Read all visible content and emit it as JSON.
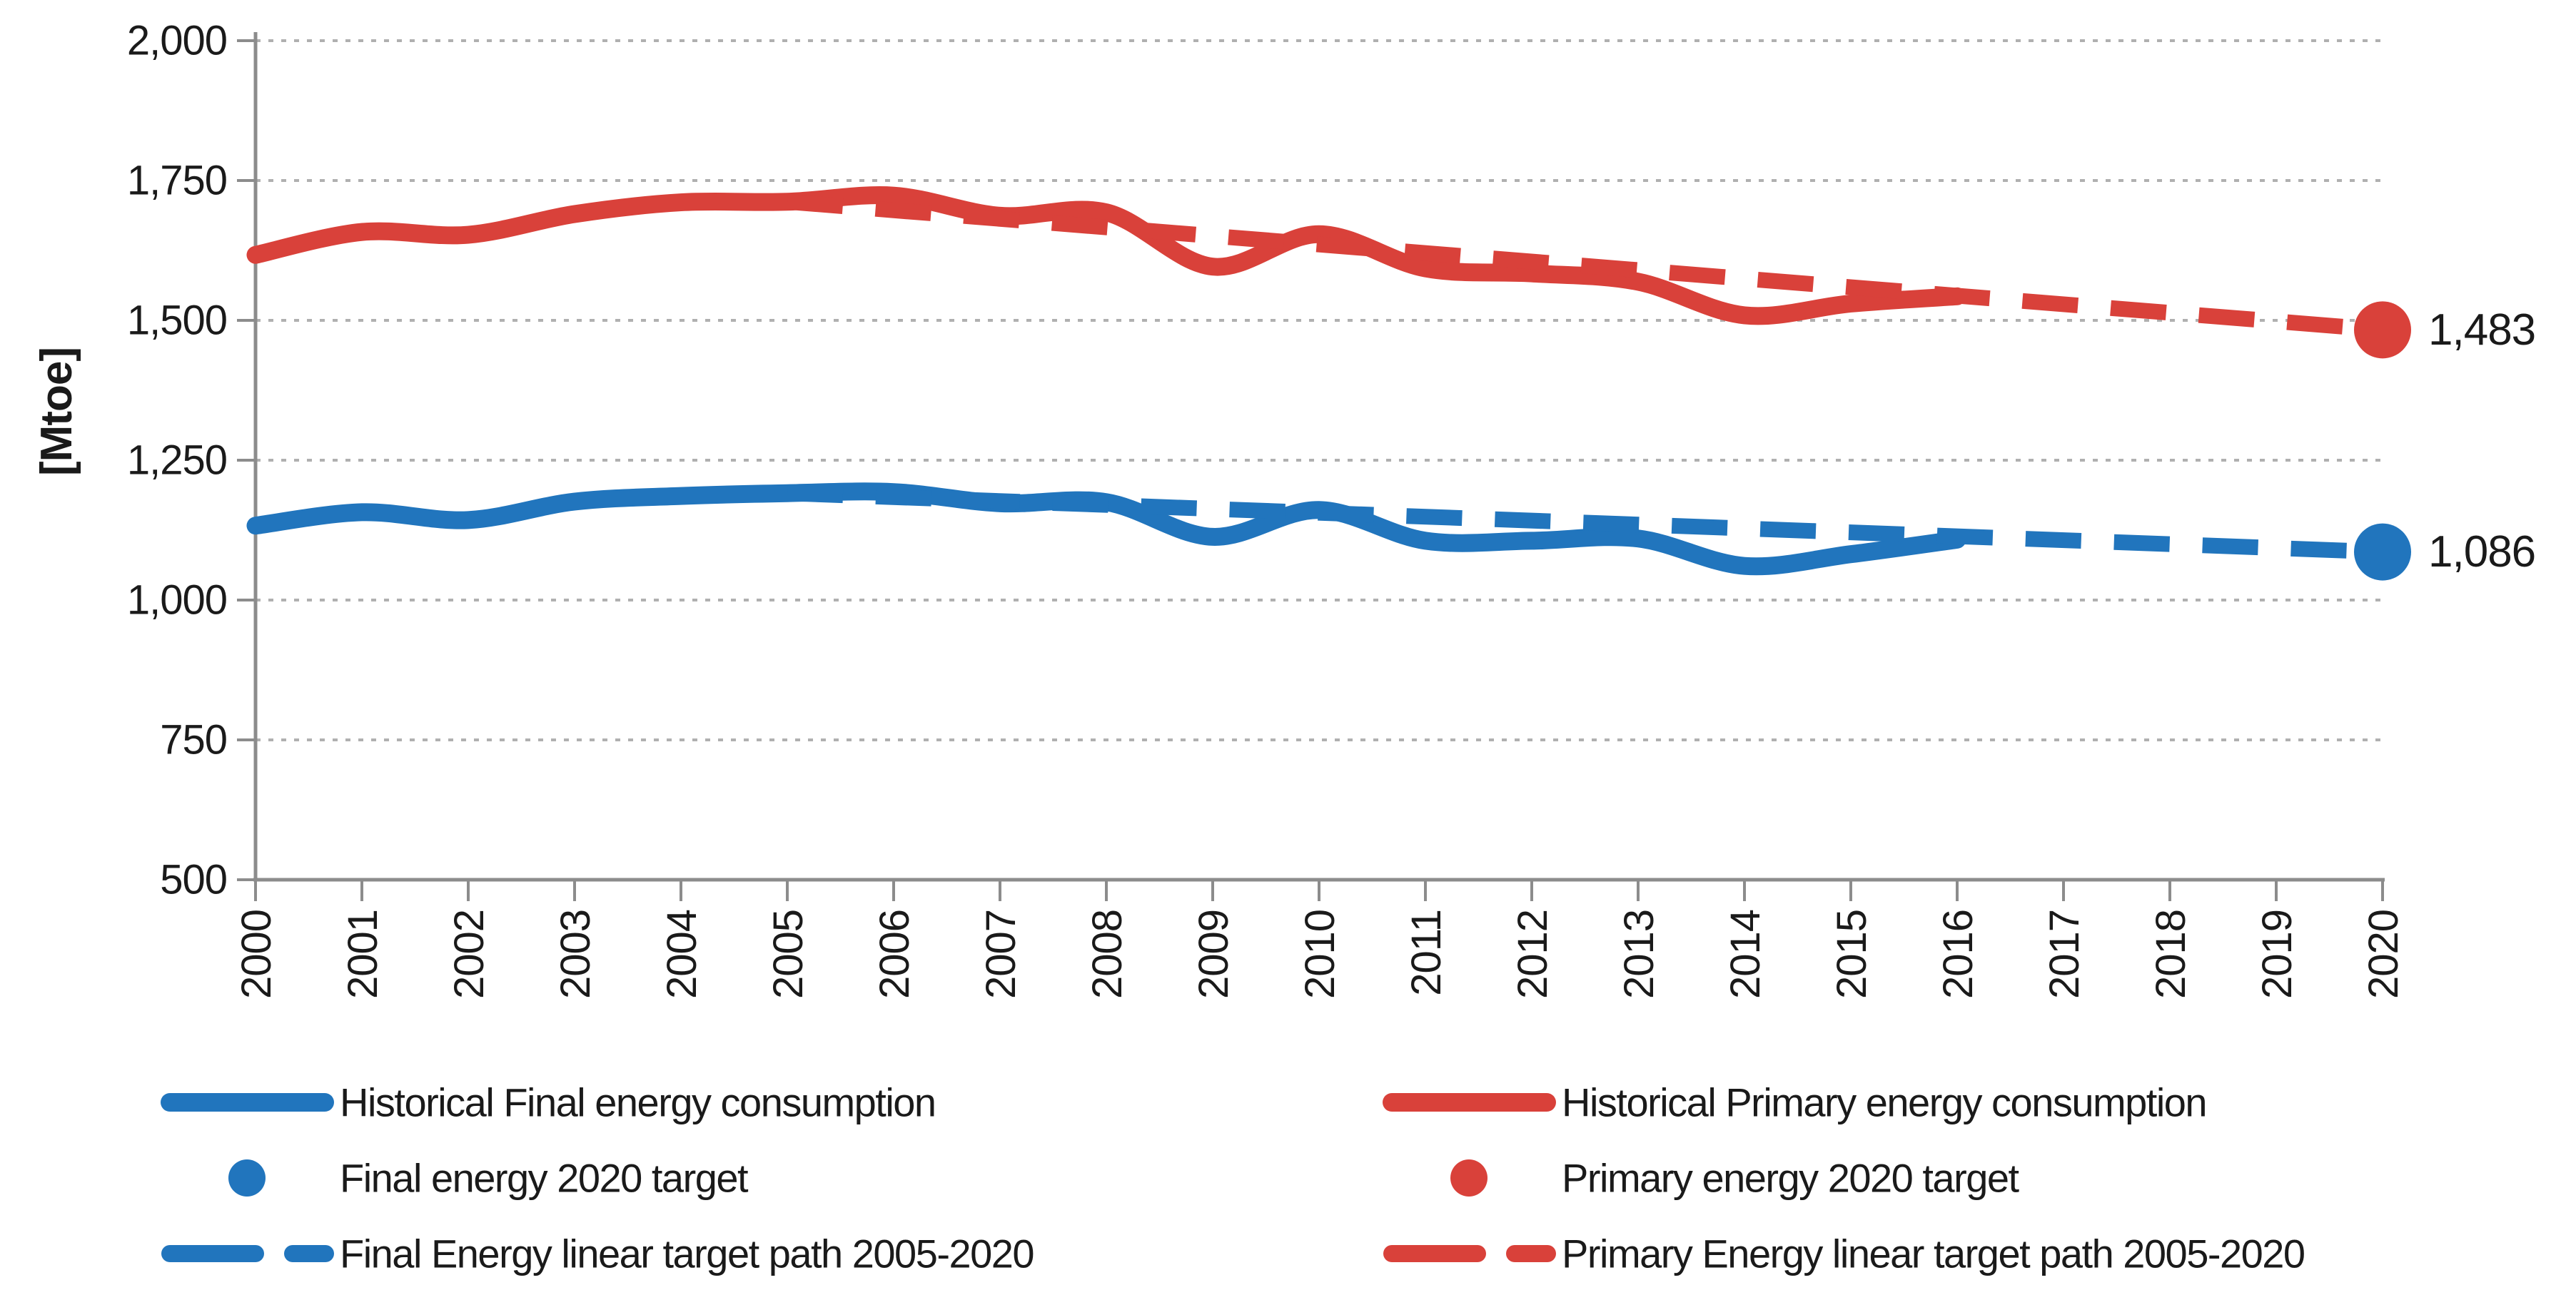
{
  "chart_data": {
    "type": "line",
    "title": "",
    "y_axis": {
      "title": "[Mtoe]",
      "min": 500,
      "max": 2000,
      "step": 250,
      "ticks": [
        {
          "value": 500,
          "label": "500"
        },
        {
          "value": 750,
          "label": "750"
        },
        {
          "value": 1000,
          "label": "1,000"
        },
        {
          "value": 1250,
          "label": "1,250"
        },
        {
          "value": 1500,
          "label": "1,500"
        },
        {
          "value": 1750,
          "label": "1,750"
        },
        {
          "value": 2000,
          "label": "2,000"
        }
      ]
    },
    "x_axis": {
      "min": 2000,
      "max": 2020,
      "tick_labels": [
        "2000",
        "2001",
        "2002",
        "2003",
        "2004",
        "2005",
        "2006",
        "2007",
        "2008",
        "2009",
        "2010",
        "2011",
        "2012",
        "2013",
        "2014",
        "2015",
        "2016",
        "2017",
        "2018",
        "2019",
        "2020"
      ]
    },
    "grid": true,
    "legend_position": "bottom",
    "colors": {
      "final": "#2175bd",
      "primary": "#d9413a",
      "grid": "#b0b0b0",
      "axis": "#8c8c8c",
      "text": "#1a1a1a"
    },
    "series": [
      {
        "id": "historical-final",
        "name": "Historical Final energy consumption",
        "color_key": "final",
        "line_style": "solid",
        "smooth": true,
        "years": [
          2000,
          2001,
          2002,
          2003,
          2004,
          2005,
          2006,
          2007,
          2008,
          2009,
          2010,
          2011,
          2012,
          2013,
          2014,
          2015,
          2016
        ],
        "values": [
          1133,
          1157,
          1143,
          1176,
          1186,
          1191,
          1193,
          1173,
          1175,
          1113,
          1161,
          1106,
          1106,
          1110,
          1061,
          1082,
          1108
        ]
      },
      {
        "id": "historical-primary",
        "name": "Historical Primary energy consumption",
        "color_key": "primary",
        "line_style": "solid",
        "smooth": true,
        "years": [
          2000,
          2001,
          2002,
          2003,
          2004,
          2005,
          2006,
          2007,
          2008,
          2009,
          2010,
          2011,
          2012,
          2013,
          2014,
          2015,
          2016
        ],
        "values": [
          1617,
          1658,
          1653,
          1690,
          1711,
          1712,
          1723,
          1687,
          1693,
          1596,
          1654,
          1593,
          1584,
          1569,
          1509,
          1530,
          1543
        ]
      },
      {
        "id": "final-target-path",
        "name": "Final Energy linear target path 2005-2020",
        "color_key": "final",
        "line_style": "dashed",
        "smooth": false,
        "years": [
          2005,
          2020
        ],
        "values": [
          1191,
          1086
        ]
      },
      {
        "id": "primary-target-path",
        "name": "Primary Energy linear target path 2005-2020",
        "color_key": "primary",
        "line_style": "dashed",
        "smooth": false,
        "years": [
          2005,
          2020
        ],
        "values": [
          1712,
          1483
        ]
      }
    ],
    "target_points": [
      {
        "id": "primary-2020-target",
        "name": "Primary energy 2020 target",
        "color_key": "primary",
        "year": 2020,
        "value": 1483,
        "label": "1,483"
      },
      {
        "id": "final-2020-target",
        "name": "Final energy 2020 target",
        "color_key": "final",
        "year": 2020,
        "value": 1086,
        "label": "1,086"
      }
    ],
    "legend": {
      "columns": [
        {
          "items": [
            {
              "swatch": "solid-line",
              "color_key": "final",
              "label": "Historical Final energy consumption"
            },
            {
              "swatch": "dot",
              "color_key": "final",
              "label": "Final energy 2020 target"
            },
            {
              "swatch": "dashed-line",
              "color_key": "final",
              "label": "Final Energy linear target path 2005-2020"
            }
          ]
        },
        {
          "items": [
            {
              "swatch": "solid-line",
              "color_key": "primary",
              "label": "Historical Primary energy consumption"
            },
            {
              "swatch": "dot",
              "color_key": "primary",
              "label": "Primary energy 2020 target"
            },
            {
              "swatch": "dashed-line",
              "color_key": "primary",
              "label": "Primary Energy linear target path 2005-2020"
            }
          ]
        }
      ]
    }
  }
}
